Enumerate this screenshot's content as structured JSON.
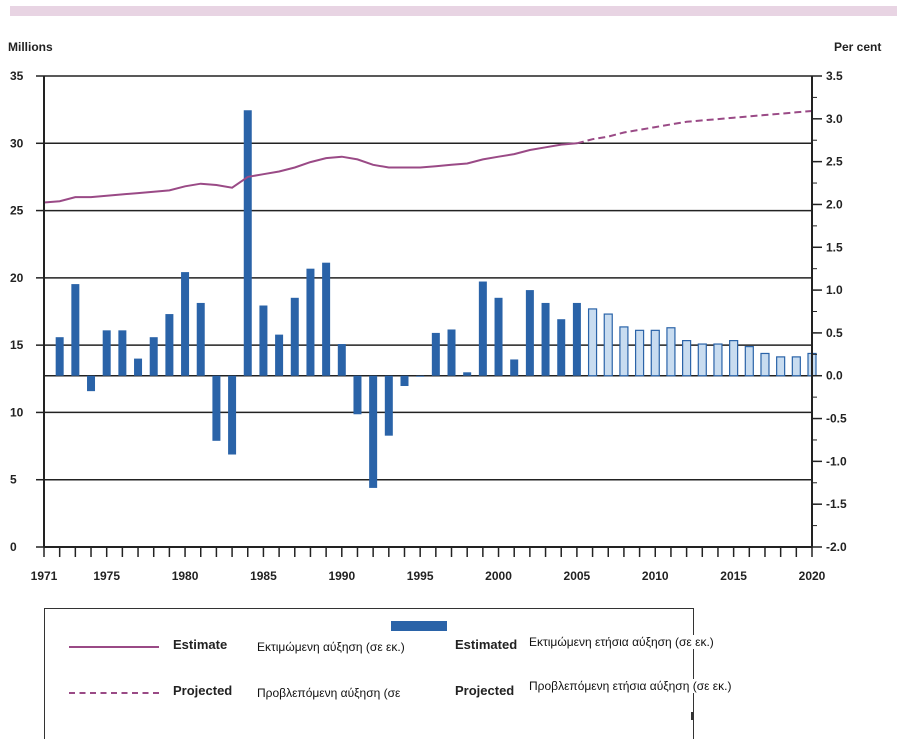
{
  "colors": {
    "bar_estimated": "#2a63a8",
    "bar_projected_fill": "#c8dcf0",
    "bar_projected_stroke": "#2a63a8",
    "line": "#9a4a86",
    "top_band": "#e8d4e3"
  },
  "legend": {
    "estimate_label": "Estimate",
    "estimate_translation": "Εκτιμώμενη αύξηση (σε εκ.)",
    "projected_label": "Projected",
    "projected_translation": "Προβλεπόμενη αύξηση (σε",
    "estimated_annual_label": "Estimated",
    "estimated_annual_translation": "Εκτιμώμενη ετήσια αύξηση (σε εκ.)",
    "projected_annual_label": "Projected",
    "projected_annual_translation": "Προβλεπόμενη ετήσια αύξηση (σε εκ.)"
  },
  "chart_data": {
    "type": "bar",
    "title": "",
    "left_axis": {
      "unit_label": "Millions",
      "ylim": [
        0,
        35
      ],
      "ticks": [
        0,
        5,
        10,
        15,
        20,
        25,
        30,
        35
      ]
    },
    "right_axis": {
      "unit_label": "Per cent",
      "ylim": [
        -2.0,
        3.5
      ],
      "ticks": [
        "3.5",
        "3.0",
        "2.5",
        "2.0",
        "1.5",
        "1.0",
        "0.5",
        "0.0",
        "-0.5",
        "-1.0",
        "-1.5",
        "-2.0"
      ]
    },
    "x_axis": {
      "min": 1971,
      "max": 2020,
      "tick_labels": [
        "1971",
        "1975",
        "1980",
        "1985",
        "1990",
        "1995",
        "2000",
        "2005",
        "2010",
        "2015",
        "2020"
      ]
    },
    "grid": true,
    "series": [
      {
        "name": "Estimate",
        "type": "line",
        "axis": "left",
        "style": "solid",
        "points": [
          [
            1971,
            25.6
          ],
          [
            1972,
            25.7
          ],
          [
            1973,
            26.0
          ],
          [
            1974,
            26.0
          ],
          [
            1975,
            26.1
          ],
          [
            1976,
            26.2
          ],
          [
            1977,
            26.3
          ],
          [
            1978,
            26.4
          ],
          [
            1979,
            26.5
          ],
          [
            1980,
            26.8
          ],
          [
            1981,
            27.0
          ],
          [
            1982,
            26.9
          ],
          [
            1983,
            26.7
          ],
          [
            1984,
            27.5
          ],
          [
            1985,
            27.7
          ],
          [
            1986,
            27.9
          ],
          [
            1987,
            28.2
          ],
          [
            1988,
            28.6
          ],
          [
            1989,
            28.9
          ],
          [
            1990,
            29.0
          ],
          [
            1991,
            28.8
          ],
          [
            1992,
            28.4
          ],
          [
            1993,
            28.2
          ],
          [
            1994,
            28.2
          ],
          [
            1995,
            28.2
          ],
          [
            1996,
            28.3
          ],
          [
            1997,
            28.4
          ],
          [
            1998,
            28.5
          ],
          [
            1999,
            28.8
          ],
          [
            2000,
            29.0
          ],
          [
            2001,
            29.2
          ],
          [
            2002,
            29.5
          ],
          [
            2003,
            29.7
          ],
          [
            2004,
            29.9
          ],
          [
            2005,
            30.0
          ]
        ]
      },
      {
        "name": "Projected",
        "type": "line",
        "axis": "left",
        "style": "dashed",
        "points": [
          [
            2005,
            30.0
          ],
          [
            2006,
            30.3
          ],
          [
            2007,
            30.5
          ],
          [
            2008,
            30.8
          ],
          [
            2009,
            31.0
          ],
          [
            2010,
            31.2
          ],
          [
            2011,
            31.4
          ],
          [
            2012,
            31.6
          ],
          [
            2013,
            31.7
          ],
          [
            2014,
            31.8
          ],
          [
            2015,
            31.9
          ],
          [
            2016,
            32.0
          ],
          [
            2017,
            32.1
          ],
          [
            2018,
            32.2
          ],
          [
            2019,
            32.3
          ],
          [
            2020,
            32.4
          ]
        ]
      },
      {
        "name": "Estimated",
        "type": "bar",
        "axis": "right",
        "x": [
          1972,
          1973,
          1974,
          1975,
          1976,
          1977,
          1978,
          1979,
          1980,
          1981,
          1982,
          1983,
          1984,
          1985,
          1986,
          1987,
          1988,
          1989,
          1990,
          1991,
          1992,
          1993,
          1994,
          1995,
          1996,
          1997,
          1998,
          1999,
          2000,
          2001,
          2002,
          2003,
          2004,
          2005
        ],
        "values": [
          0.45,
          1.07,
          -0.18,
          0.53,
          0.53,
          0.2,
          0.45,
          0.72,
          1.21,
          0.85,
          -0.76,
          -0.92,
          3.1,
          0.82,
          0.48,
          0.91,
          1.25,
          1.32,
          0.37,
          -0.45,
          -1.31,
          -0.7,
          -0.12,
          0.0,
          0.5,
          0.54,
          0.04,
          1.1,
          0.91,
          0.19,
          1.0,
          0.85,
          0.66,
          0.85
        ]
      },
      {
        "name": "Projected",
        "type": "bar",
        "axis": "right",
        "x": [
          2006,
          2007,
          2008,
          2009,
          2010,
          2011,
          2012,
          2013,
          2014,
          2015,
          2016,
          2017,
          2018,
          2019,
          2020
        ],
        "values": [
          0.78,
          0.72,
          0.57,
          0.53,
          0.53,
          0.56,
          0.41,
          0.37,
          0.37,
          0.41,
          0.34,
          0.26,
          0.22,
          0.22,
          0.26
        ]
      }
    ]
  }
}
